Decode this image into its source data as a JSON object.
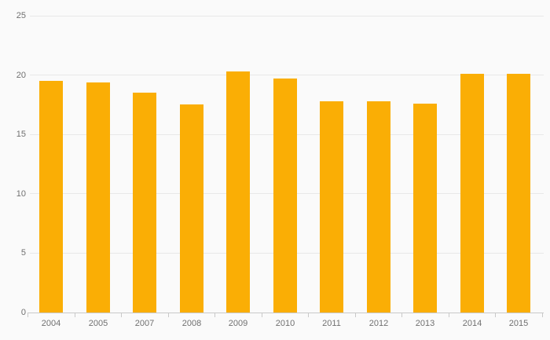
{
  "chart_data": {
    "type": "bar",
    "title": "",
    "xlabel": "",
    "ylabel": "",
    "categories": [
      "2004",
      "2005",
      "2007",
      "2008",
      "2009",
      "2010",
      "2011",
      "2012",
      "2013",
      "2014",
      "2015"
    ],
    "values": [
      19.5,
      19.4,
      18.5,
      17.5,
      20.3,
      19.7,
      17.8,
      17.8,
      17.6,
      20.1,
      20.1
    ],
    "ylim": [
      0,
      25
    ],
    "yticks": [
      0,
      5,
      10,
      15,
      20,
      25
    ],
    "grid": true,
    "legend": false,
    "colors": {
      "bar": "#FAAE05",
      "background": "#FAFAFA",
      "gridline": "#E8E8E8",
      "axis_line": "#C9C9C9",
      "tick": "#C9C9C9",
      "label": "#707070"
    }
  }
}
